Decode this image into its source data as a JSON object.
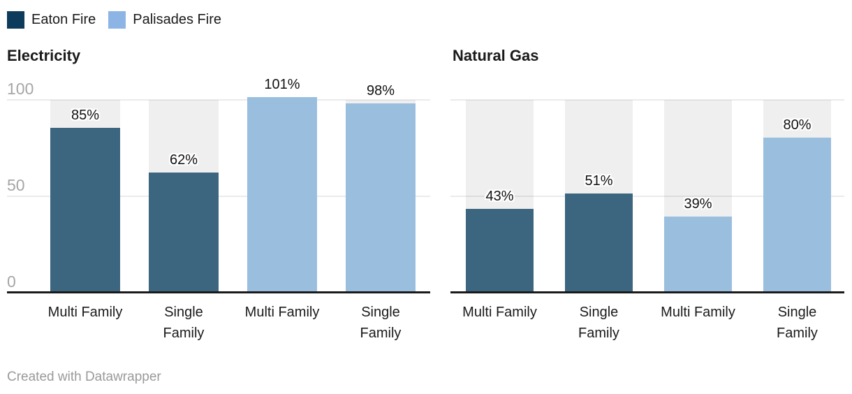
{
  "legend": {
    "items": [
      {
        "label": "Eaton Fire",
        "color": "#0d3b5c"
      },
      {
        "label": "Palisades Fire",
        "color": "#8cb5e6"
      }
    ]
  },
  "colors": {
    "series_colors": {
      "Eaton Fire": "#3c657f",
      "Palisades Fire": "#9abede"
    },
    "column_background": "#efefef",
    "gridline": "rgba(0,0,0,0.08)",
    "baseline": "#1a1a1a",
    "axis_tick_label": "#a6a6a6",
    "text": "#1a1a1a",
    "footer_text": "#9a9a9a"
  },
  "chart_data": [
    {
      "type": "bar",
      "title": "Electricity",
      "unit": "%",
      "ylim": [
        0,
        100
      ],
      "gridlines": [
        100,
        50
      ],
      "legend_position": "top-left",
      "y_axis": {
        "ticks": [
          {
            "value": 100,
            "label": "100"
          },
          {
            "value": 50,
            "label": "50"
          },
          {
            "value": 0,
            "label": "0"
          }
        ]
      },
      "bars": [
        {
          "category": "Multi Family",
          "category_display": "Multi Family",
          "series": "Eaton Fire",
          "value": 85,
          "label": "85%"
        },
        {
          "category": "Single Family",
          "category_display": "Single\nFamily",
          "series": "Eaton Fire",
          "value": 62,
          "label": "62%"
        },
        {
          "category": "Multi Family",
          "category_display": "Multi Family",
          "series": "Palisades Fire",
          "value": 101,
          "label": "101%"
        },
        {
          "category": "Single Family",
          "category_display": "Single\nFamily",
          "series": "Palisades Fire",
          "value": 98,
          "label": "98%"
        }
      ]
    },
    {
      "type": "bar",
      "title": "Natural Gas",
      "unit": "%",
      "ylim": [
        0,
        100
      ],
      "gridlines": [
        100,
        50
      ],
      "y_axis": {
        "ticks": []
      },
      "bars": [
        {
          "category": "Multi Family",
          "category_display": "Multi Family",
          "series": "Eaton Fire",
          "value": 43,
          "label": "43%"
        },
        {
          "category": "Single Family",
          "category_display": "Single\nFamily",
          "series": "Eaton Fire",
          "value": 51,
          "label": "51%"
        },
        {
          "category": "Multi Family",
          "category_display": "Multi Family",
          "series": "Palisades Fire",
          "value": 39,
          "label": "39%"
        },
        {
          "category": "Single Family",
          "category_display": "Single\nFamily",
          "series": "Palisades Fire",
          "value": 80,
          "label": "80%"
        }
      ]
    }
  ],
  "footer": {
    "text": "Created with Datawrapper"
  }
}
